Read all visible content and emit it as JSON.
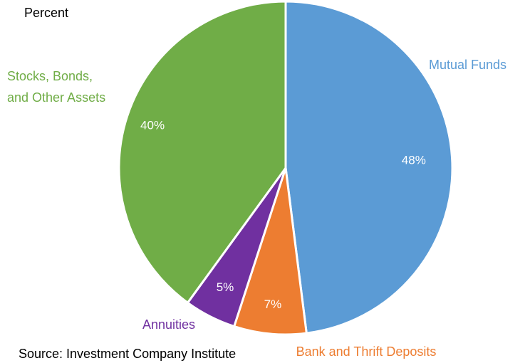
{
  "chart_data": {
    "type": "pie",
    "title": "",
    "subtitle": "Percent",
    "source": "Source: Investment Company Institute",
    "slices": [
      {
        "label": "Mutual Funds",
        "value": 48,
        "value_label": "48%",
        "color": "#5b9bd5"
      },
      {
        "label": "Bank and Thrift Deposits",
        "value": 7,
        "value_label": "7%",
        "color": "#ed7d31"
      },
      {
        "label": "Annuities",
        "value": 5,
        "value_label": "5%",
        "color": "#7030a0"
      },
      {
        "label": "Stocks, Bonds, and Other Assets",
        "value": 40,
        "value_label": "40%",
        "color": "#70ad47"
      }
    ],
    "legend": "none (labels placed next to slices)"
  }
}
